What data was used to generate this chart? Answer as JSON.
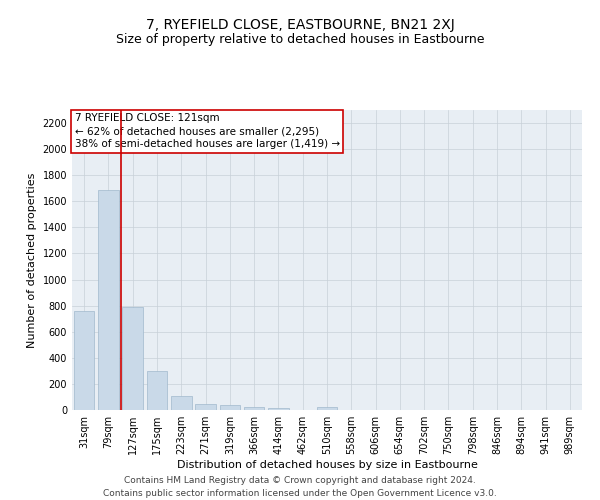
{
  "title": "7, RYEFIELD CLOSE, EASTBOURNE, BN21 2XJ",
  "subtitle": "Size of property relative to detached houses in Eastbourne",
  "xlabel": "Distribution of detached houses by size in Eastbourne",
  "ylabel": "Number of detached properties",
  "footer_line1": "Contains HM Land Registry data © Crown copyright and database right 2024.",
  "footer_line2": "Contains public sector information licensed under the Open Government Licence v3.0.",
  "annotation_line1": "7 RYEFIELD CLOSE: 121sqm",
  "annotation_line2": "← 62% of detached houses are smaller (2,295)",
  "annotation_line3": "38% of semi-detached houses are larger (1,419) →",
  "bar_labels": [
    "31sqm",
    "79sqm",
    "127sqm",
    "175sqm",
    "223sqm",
    "271sqm",
    "319sqm",
    "366sqm",
    "414sqm",
    "462sqm",
    "510sqm",
    "558sqm",
    "606sqm",
    "654sqm",
    "702sqm",
    "750sqm",
    "798sqm",
    "846sqm",
    "894sqm",
    "941sqm",
    "989sqm"
  ],
  "bar_values": [
    760,
    1690,
    790,
    300,
    110,
    45,
    35,
    25,
    15,
    0,
    20,
    0,
    0,
    0,
    0,
    0,
    0,
    0,
    0,
    0,
    0
  ],
  "bar_color": "#c9d9e8",
  "bar_edge_color": "#a0b8cc",
  "red_line_x": 1.5,
  "ylim": [
    0,
    2300
  ],
  "yticks": [
    0,
    200,
    400,
    600,
    800,
    1000,
    1200,
    1400,
    1600,
    1800,
    2000,
    2200
  ],
  "grid_color": "#c8d0d8",
  "background_color": "#e8eef4",
  "red_line_color": "#cc0000",
  "annotation_box_color": "#cc0000",
  "title_fontsize": 10,
  "subtitle_fontsize": 9,
  "ylabel_fontsize": 8,
  "xlabel_fontsize": 8,
  "tick_fontsize": 7,
  "annotation_fontsize": 7.5,
  "footer_fontsize": 6.5
}
